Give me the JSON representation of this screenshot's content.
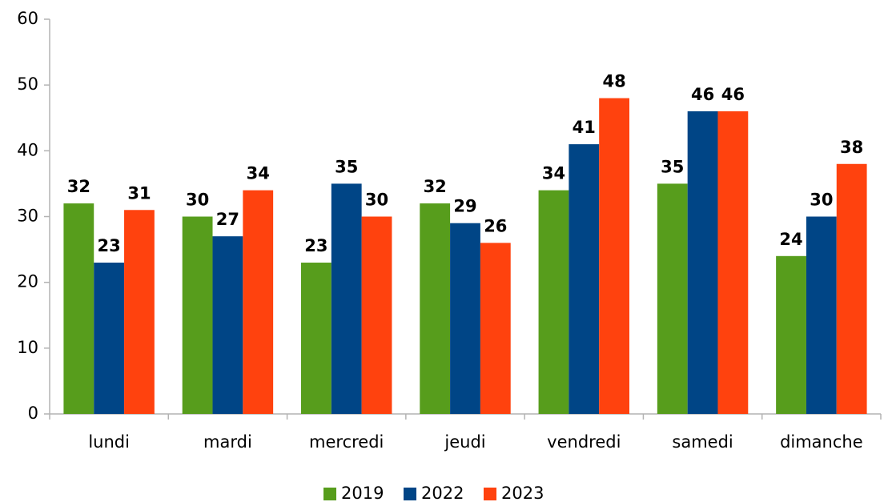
{
  "chart_data": {
    "type": "bar",
    "categories": [
      "lundi",
      "mardi",
      "mercredi",
      "jeudi",
      "vendredi",
      "samedi",
      "dimanche"
    ],
    "series": [
      {
        "name": "2019",
        "color": "#579d1c",
        "values": [
          32,
          30,
          23,
          32,
          34,
          35,
          24
        ]
      },
      {
        "name": "2022",
        "color": "#004586",
        "values": [
          23,
          27,
          35,
          29,
          41,
          46,
          30
        ]
      },
      {
        "name": "2023",
        "color": "#ff420e",
        "values": [
          31,
          34,
          30,
          26,
          48,
          46,
          38
        ]
      }
    ],
    "ylim": [
      0,
      60
    ],
    "yticks": [
      0,
      10,
      20,
      30,
      40,
      50,
      60
    ],
    "grid": false,
    "legend": "bottom"
  }
}
